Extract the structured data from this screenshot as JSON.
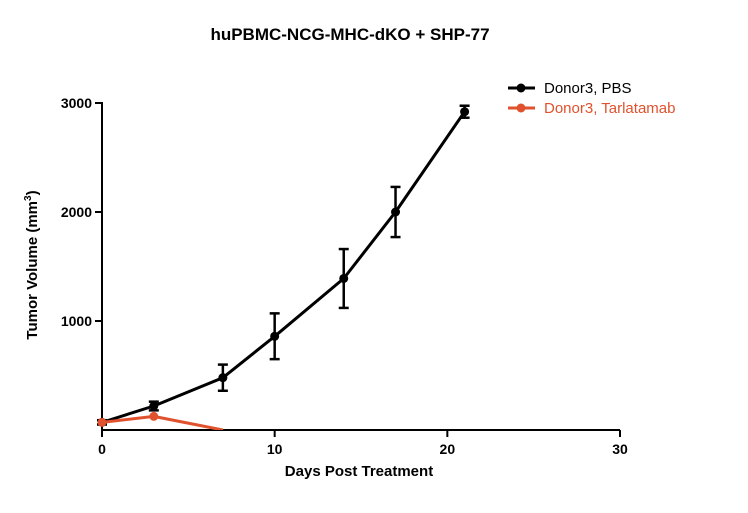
{
  "chart_data": {
    "type": "line",
    "title": "huPBMC-NCG-MHC-dKO + SHP-77",
    "xlabel": "Days Post Treatment",
    "ylabel": "Tumor Volume (mm",
    "ylabel_superscript": "3",
    "ylabel_suffix": ")",
    "xlim": [
      0,
      30
    ],
    "ylim": [
      0,
      3000
    ],
    "x_ticks": [
      0,
      10,
      20,
      30
    ],
    "y_ticks": [
      1000,
      2000,
      3000
    ],
    "x_tick_labels": [
      "0",
      "10",
      "20",
      "30"
    ],
    "y_tick_labels": [
      "1000",
      "2000",
      "3000"
    ],
    "legend_position": "top-right",
    "series": [
      {
        "name": "Donor3, PBS",
        "color": "#000000",
        "x": [
          0,
          3,
          7,
          10,
          14,
          17,
          21
        ],
        "y": [
          70,
          220,
          480,
          860,
          1390,
          2000,
          2920
        ],
        "err": [
          20,
          40,
          120,
          210,
          270,
          230,
          55
        ]
      },
      {
        "name": "Donor3, Tarlatamab",
        "color": "#e0522e",
        "x": [
          0,
          3,
          7
        ],
        "y": [
          70,
          125,
          0
        ],
        "err": [
          0,
          0,
          0
        ]
      }
    ]
  }
}
